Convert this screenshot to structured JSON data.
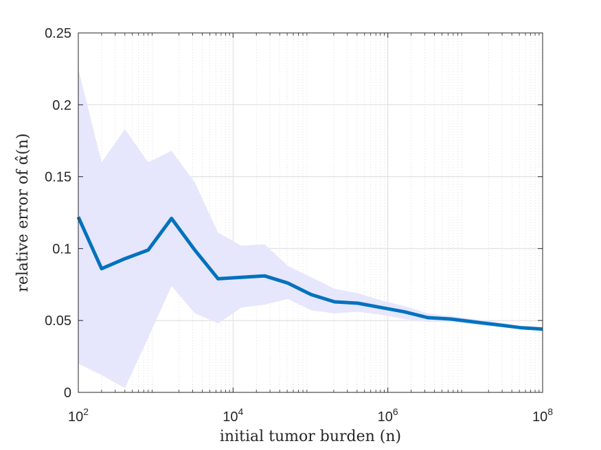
{
  "chart_data": {
    "type": "line",
    "xscale": "log",
    "xlabel": "initial tumor burden (n)",
    "ylabel": "relative error of α̂(n)",
    "xlim": [
      100,
      100000000
    ],
    "ylim": [
      0,
      0.25
    ],
    "yticks": [
      0,
      0.05,
      0.1,
      0.15,
      0.2,
      0.25
    ],
    "ytick_labels": [
      "0",
      "0.05",
      "0.1",
      "0.15",
      "0.2",
      "0.25"
    ],
    "xticks": [
      100,
      10000,
      1000000,
      100000000
    ],
    "xtick_labels": [
      {
        "base": "10",
        "exp": "2"
      },
      {
        "base": "10",
        "exp": "4"
      },
      {
        "base": "10",
        "exp": "6"
      },
      {
        "base": "10",
        "exp": "8"
      }
    ],
    "grid": true,
    "colors": {
      "line": "#0072bd",
      "band": "#e6e6fc"
    },
    "x": [
      100,
      200,
      400,
      800,
      1600,
      3200,
      6400,
      12800,
      25600,
      51200,
      102400,
      204800,
      409600,
      819200,
      1638400,
      3276800,
      6553600,
      13107200,
      26214400,
      52428800,
      100000000
    ],
    "series": [
      {
        "name": "",
        "values": [
          0.122,
          0.086,
          0.093,
          0.099,
          0.121,
          0.099,
          0.079,
          0.08,
          0.081,
          0.076,
          0.068,
          0.063,
          0.062,
          0.059,
          0.056,
          0.052,
          0.051,
          0.049,
          0.047,
          0.045,
          0.044
        ]
      }
    ],
    "band": {
      "upper": [
        0.225,
        0.16,
        0.183,
        0.16,
        0.168,
        0.146,
        0.111,
        0.102,
        0.103,
        0.088,
        0.08,
        0.072,
        0.069,
        0.064,
        0.06,
        0.055,
        0.053,
        0.051,
        0.049,
        0.046,
        0.045
      ],
      "lower": [
        0.02,
        0.012,
        0.003,
        0.038,
        0.074,
        0.055,
        0.048,
        0.059,
        0.061,
        0.065,
        0.057,
        0.055,
        0.056,
        0.054,
        0.051,
        0.049,
        0.049,
        0.047,
        0.046,
        0.044,
        0.043
      ]
    }
  }
}
